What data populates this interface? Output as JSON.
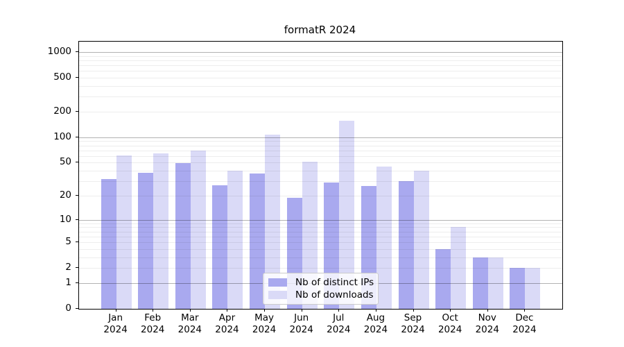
{
  "chart_data": {
    "type": "bar",
    "title": "formatR 2024",
    "categories": [
      "Jan",
      "Feb",
      "Mar",
      "Apr",
      "May",
      "Jun",
      "Jul",
      "Aug",
      "Sep",
      "Oct",
      "Nov",
      "Dec"
    ],
    "year_label": "2024",
    "series": [
      {
        "key": "distinct-ips",
        "name": "Nb of distinct IPs",
        "color": "#a9a9ef",
        "values": [
          32,
          38,
          49,
          27,
          37,
          19,
          29,
          26,
          30,
          4,
          3,
          2
        ]
      },
      {
        "key": "downloads",
        "name": "Nb of downloads",
        "color": "#dadaf7",
        "values": [
          61,
          65,
          69,
          40,
          108,
          51,
          158,
          45,
          40,
          8,
          3,
          2
        ]
      }
    ],
    "y_axis": {
      "scale": "log1p",
      "tick_labels": [
        "0",
        "1",
        "2",
        "5",
        "10",
        "20",
        "50",
        "100",
        "200",
        "500",
        "1000"
      ],
      "tick_values": [
        0,
        1,
        2,
        5,
        10,
        20,
        50,
        100,
        200,
        500,
        1000
      ],
      "major_gridlines": [
        1,
        10,
        100,
        1000
      ],
      "minor_gridlines": [
        2,
        3,
        4,
        5,
        6,
        7,
        8,
        9,
        20,
        30,
        40,
        50,
        60,
        70,
        80,
        90,
        200,
        300,
        400,
        500,
        600,
        700,
        800,
        900
      ],
      "ylim": [
        0,
        1320
      ]
    },
    "xlabel": "",
    "ylabel": "",
    "legend_position": "lower center",
    "grid": true
  }
}
